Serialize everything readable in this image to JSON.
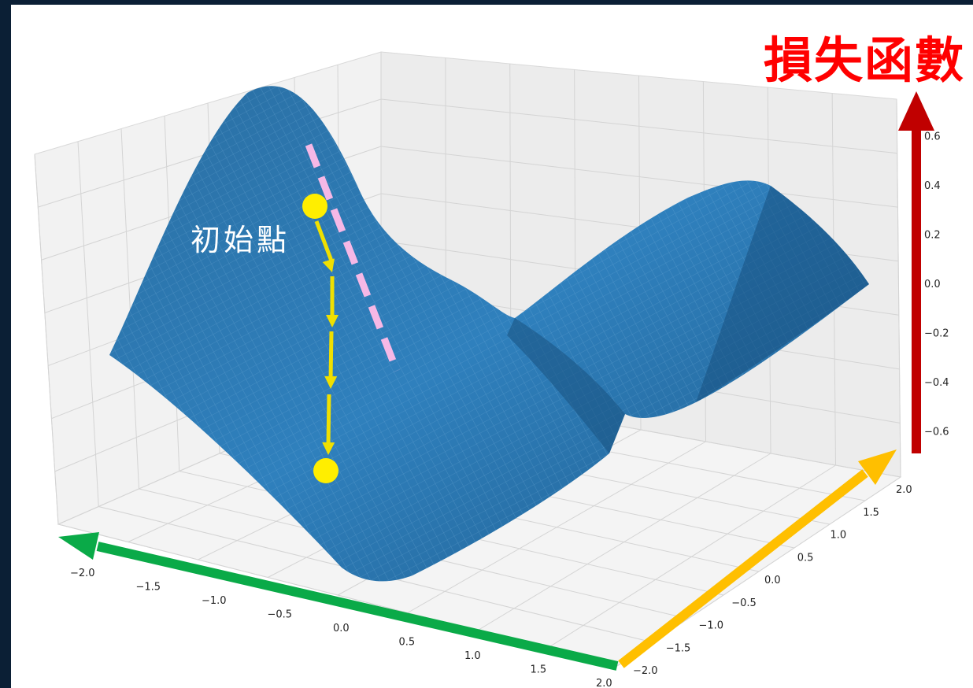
{
  "chart_data": {
    "type": "surface",
    "title": "損失函數",
    "x_ticks": [
      "−2.0",
      "−1.5",
      "−1.0",
      "−0.5",
      "0.0",
      "0.5",
      "1.0",
      "1.5",
      "2.0"
    ],
    "y_ticks": [
      "−2.0",
      "−1.5",
      "−1.0",
      "−0.5",
      "0.0",
      "0.5",
      "1.0",
      "1.5",
      "2.0"
    ],
    "z_ticks": [
      "−0.6",
      "−0.4",
      "−0.2",
      "0.0",
      "0.2",
      "0.4",
      "0.6"
    ],
    "xlim": [
      -2.0,
      2.0
    ],
    "ylim": [
      -2.0,
      2.0
    ],
    "zlim": [
      -0.7,
      0.7
    ],
    "grid": true,
    "start_point_label": "初始點",
    "colors": {
      "surface": "#1f77b4",
      "mesh": "#6fa8d6",
      "path": "#f0e000",
      "point": "#ffee00",
      "tangent": "#f6b8e6",
      "x_axis_arrow": "#0aaa48",
      "y_axis_arrow": "#ffbf00",
      "z_axis_arrow": "#c00000",
      "title": "#ff0000",
      "background": "#0b1f35"
    }
  }
}
